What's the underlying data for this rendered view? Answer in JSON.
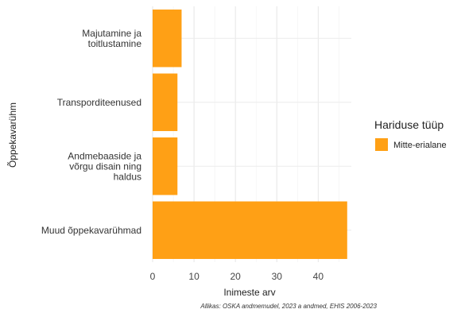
{
  "chart_data": {
    "type": "bar",
    "orientation": "horizontal",
    "categories": [
      [
        "Majutamine ja",
        "toitlustamine"
      ],
      [
        "Transporditeenused"
      ],
      [
        "Andmebaaside ja",
        "võrgu disain ning",
        "haldus"
      ],
      [
        "Muud õppekavarühmad"
      ]
    ],
    "series": [
      {
        "name": "Mitte-erialane",
        "values": [
          7,
          6,
          6,
          47
        ],
        "color": "#FFA015"
      }
    ],
    "xlabel": "Inimeste arv",
    "ylabel": "Õppekavarühm",
    "xlim": [
      0,
      48
    ],
    "xticks": [
      0,
      10,
      20,
      30,
      40
    ],
    "grid": true,
    "legend": {
      "title": "Hariduse tüüp",
      "position": "right"
    },
    "caption": "Allikas: OSKA andmemudel, 2023 a andmed, EHIS 2006-2023"
  }
}
